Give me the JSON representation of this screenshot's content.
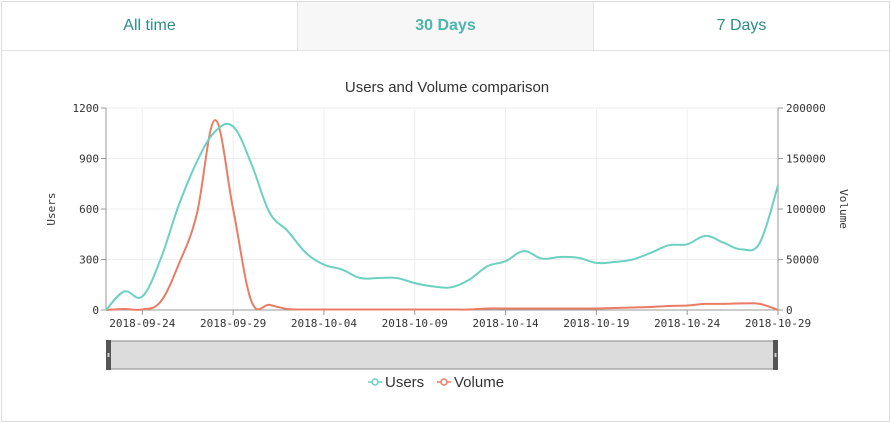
{
  "tabs": [
    {
      "label": "All time",
      "active": false
    },
    {
      "label": "30 Days",
      "active": true
    },
    {
      "label": "7 Days",
      "active": false
    }
  ],
  "colors": {
    "users": "#6cd1c1",
    "volume": "#e97c64",
    "tab_text": "#2c8c86",
    "tab_active_text": "#4cb5ac"
  },
  "chart_data": {
    "type": "line",
    "title": "Users and Volume comparison",
    "y_left_label": "Users",
    "y_right_label": "Volume",
    "y_left_range": [
      0,
      1200
    ],
    "y_right_range": [
      0,
      200000
    ],
    "y_left_ticks": [
      "0",
      "300",
      "600",
      "900",
      "1200"
    ],
    "y_right_ticks": [
      "0",
      "50000",
      "100000",
      "150000",
      "200000"
    ],
    "x_range": [
      "2018-09-22",
      "2018-10-29"
    ],
    "x_ticks": [
      "2018-09-24",
      "2018-09-29",
      "2018-10-04",
      "2018-10-09",
      "2018-10-14",
      "2018-10-19",
      "2018-10-24",
      "2018-10-29"
    ],
    "grid": true,
    "legend_position": "bottom",
    "series": [
      {
        "name": "Users",
        "axis": "left",
        "points": [
          [
            "2018-09-22",
            0
          ],
          [
            "2018-09-23",
            110
          ],
          [
            "2018-09-24",
            80
          ],
          [
            "2018-09-25",
            300
          ],
          [
            "2018-09-26",
            620
          ],
          [
            "2018-09-27",
            880
          ],
          [
            "2018-09-28",
            1060
          ],
          [
            "2018-09-29",
            1090
          ],
          [
            "2018-09-30",
            870
          ],
          [
            "2018-10-01",
            580
          ],
          [
            "2018-10-02",
            470
          ],
          [
            "2018-10-03",
            340
          ],
          [
            "2018-10-04",
            270
          ],
          [
            "2018-10-05",
            240
          ],
          [
            "2018-10-06",
            190
          ],
          [
            "2018-10-07",
            190
          ],
          [
            "2018-10-08",
            190
          ],
          [
            "2018-10-09",
            160
          ],
          [
            "2018-10-10",
            140
          ],
          [
            "2018-10-11",
            135
          ],
          [
            "2018-10-12",
            180
          ],
          [
            "2018-10-13",
            260
          ],
          [
            "2018-10-14",
            290
          ],
          [
            "2018-10-15",
            350
          ],
          [
            "2018-10-16",
            305
          ],
          [
            "2018-10-17",
            315
          ],
          [
            "2018-10-18",
            310
          ],
          [
            "2018-10-19",
            280
          ],
          [
            "2018-10-20",
            285
          ],
          [
            "2018-10-21",
            300
          ],
          [
            "2018-10-22",
            340
          ],
          [
            "2018-10-23",
            385
          ],
          [
            "2018-10-24",
            390
          ],
          [
            "2018-10-25",
            440
          ],
          [
            "2018-10-26",
            400
          ],
          [
            "2018-10-27",
            360
          ],
          [
            "2018-10-28",
            400
          ],
          [
            "2018-10-29",
            740
          ]
        ]
      },
      {
        "name": "Volume",
        "axis": "right",
        "points": [
          [
            "2018-09-22",
            0
          ],
          [
            "2018-09-23",
            1000
          ],
          [
            "2018-09-24",
            500
          ],
          [
            "2018-09-25",
            8000
          ],
          [
            "2018-09-26",
            45000
          ],
          [
            "2018-09-27",
            95000
          ],
          [
            "2018-09-28",
            188000
          ],
          [
            "2018-09-29",
            100000
          ],
          [
            "2018-09-30",
            9000
          ],
          [
            "2018-10-01",
            5000
          ],
          [
            "2018-10-02",
            1000
          ],
          [
            "2018-10-03",
            500
          ],
          [
            "2018-10-04",
            500
          ],
          [
            "2018-10-05",
            500
          ],
          [
            "2018-10-06",
            500
          ],
          [
            "2018-10-07",
            500
          ],
          [
            "2018-10-08",
            500
          ],
          [
            "2018-10-09",
            500
          ],
          [
            "2018-10-10",
            500
          ],
          [
            "2018-10-11",
            500
          ],
          [
            "2018-10-12",
            500
          ],
          [
            "2018-10-13",
            1500
          ],
          [
            "2018-10-14",
            1500
          ],
          [
            "2018-10-15",
            1500
          ],
          [
            "2018-10-16",
            1500
          ],
          [
            "2018-10-17",
            1500
          ],
          [
            "2018-10-18",
            1500
          ],
          [
            "2018-10-19",
            1500
          ],
          [
            "2018-10-20",
            2000
          ],
          [
            "2018-10-21",
            2500
          ],
          [
            "2018-10-22",
            3000
          ],
          [
            "2018-10-23",
            4000
          ],
          [
            "2018-10-24",
            4500
          ],
          [
            "2018-10-25",
            6000
          ],
          [
            "2018-10-26",
            6000
          ],
          [
            "2018-10-27",
            6500
          ],
          [
            "2018-10-28",
            6000
          ],
          [
            "2018-10-29",
            0
          ]
        ]
      }
    ]
  }
}
